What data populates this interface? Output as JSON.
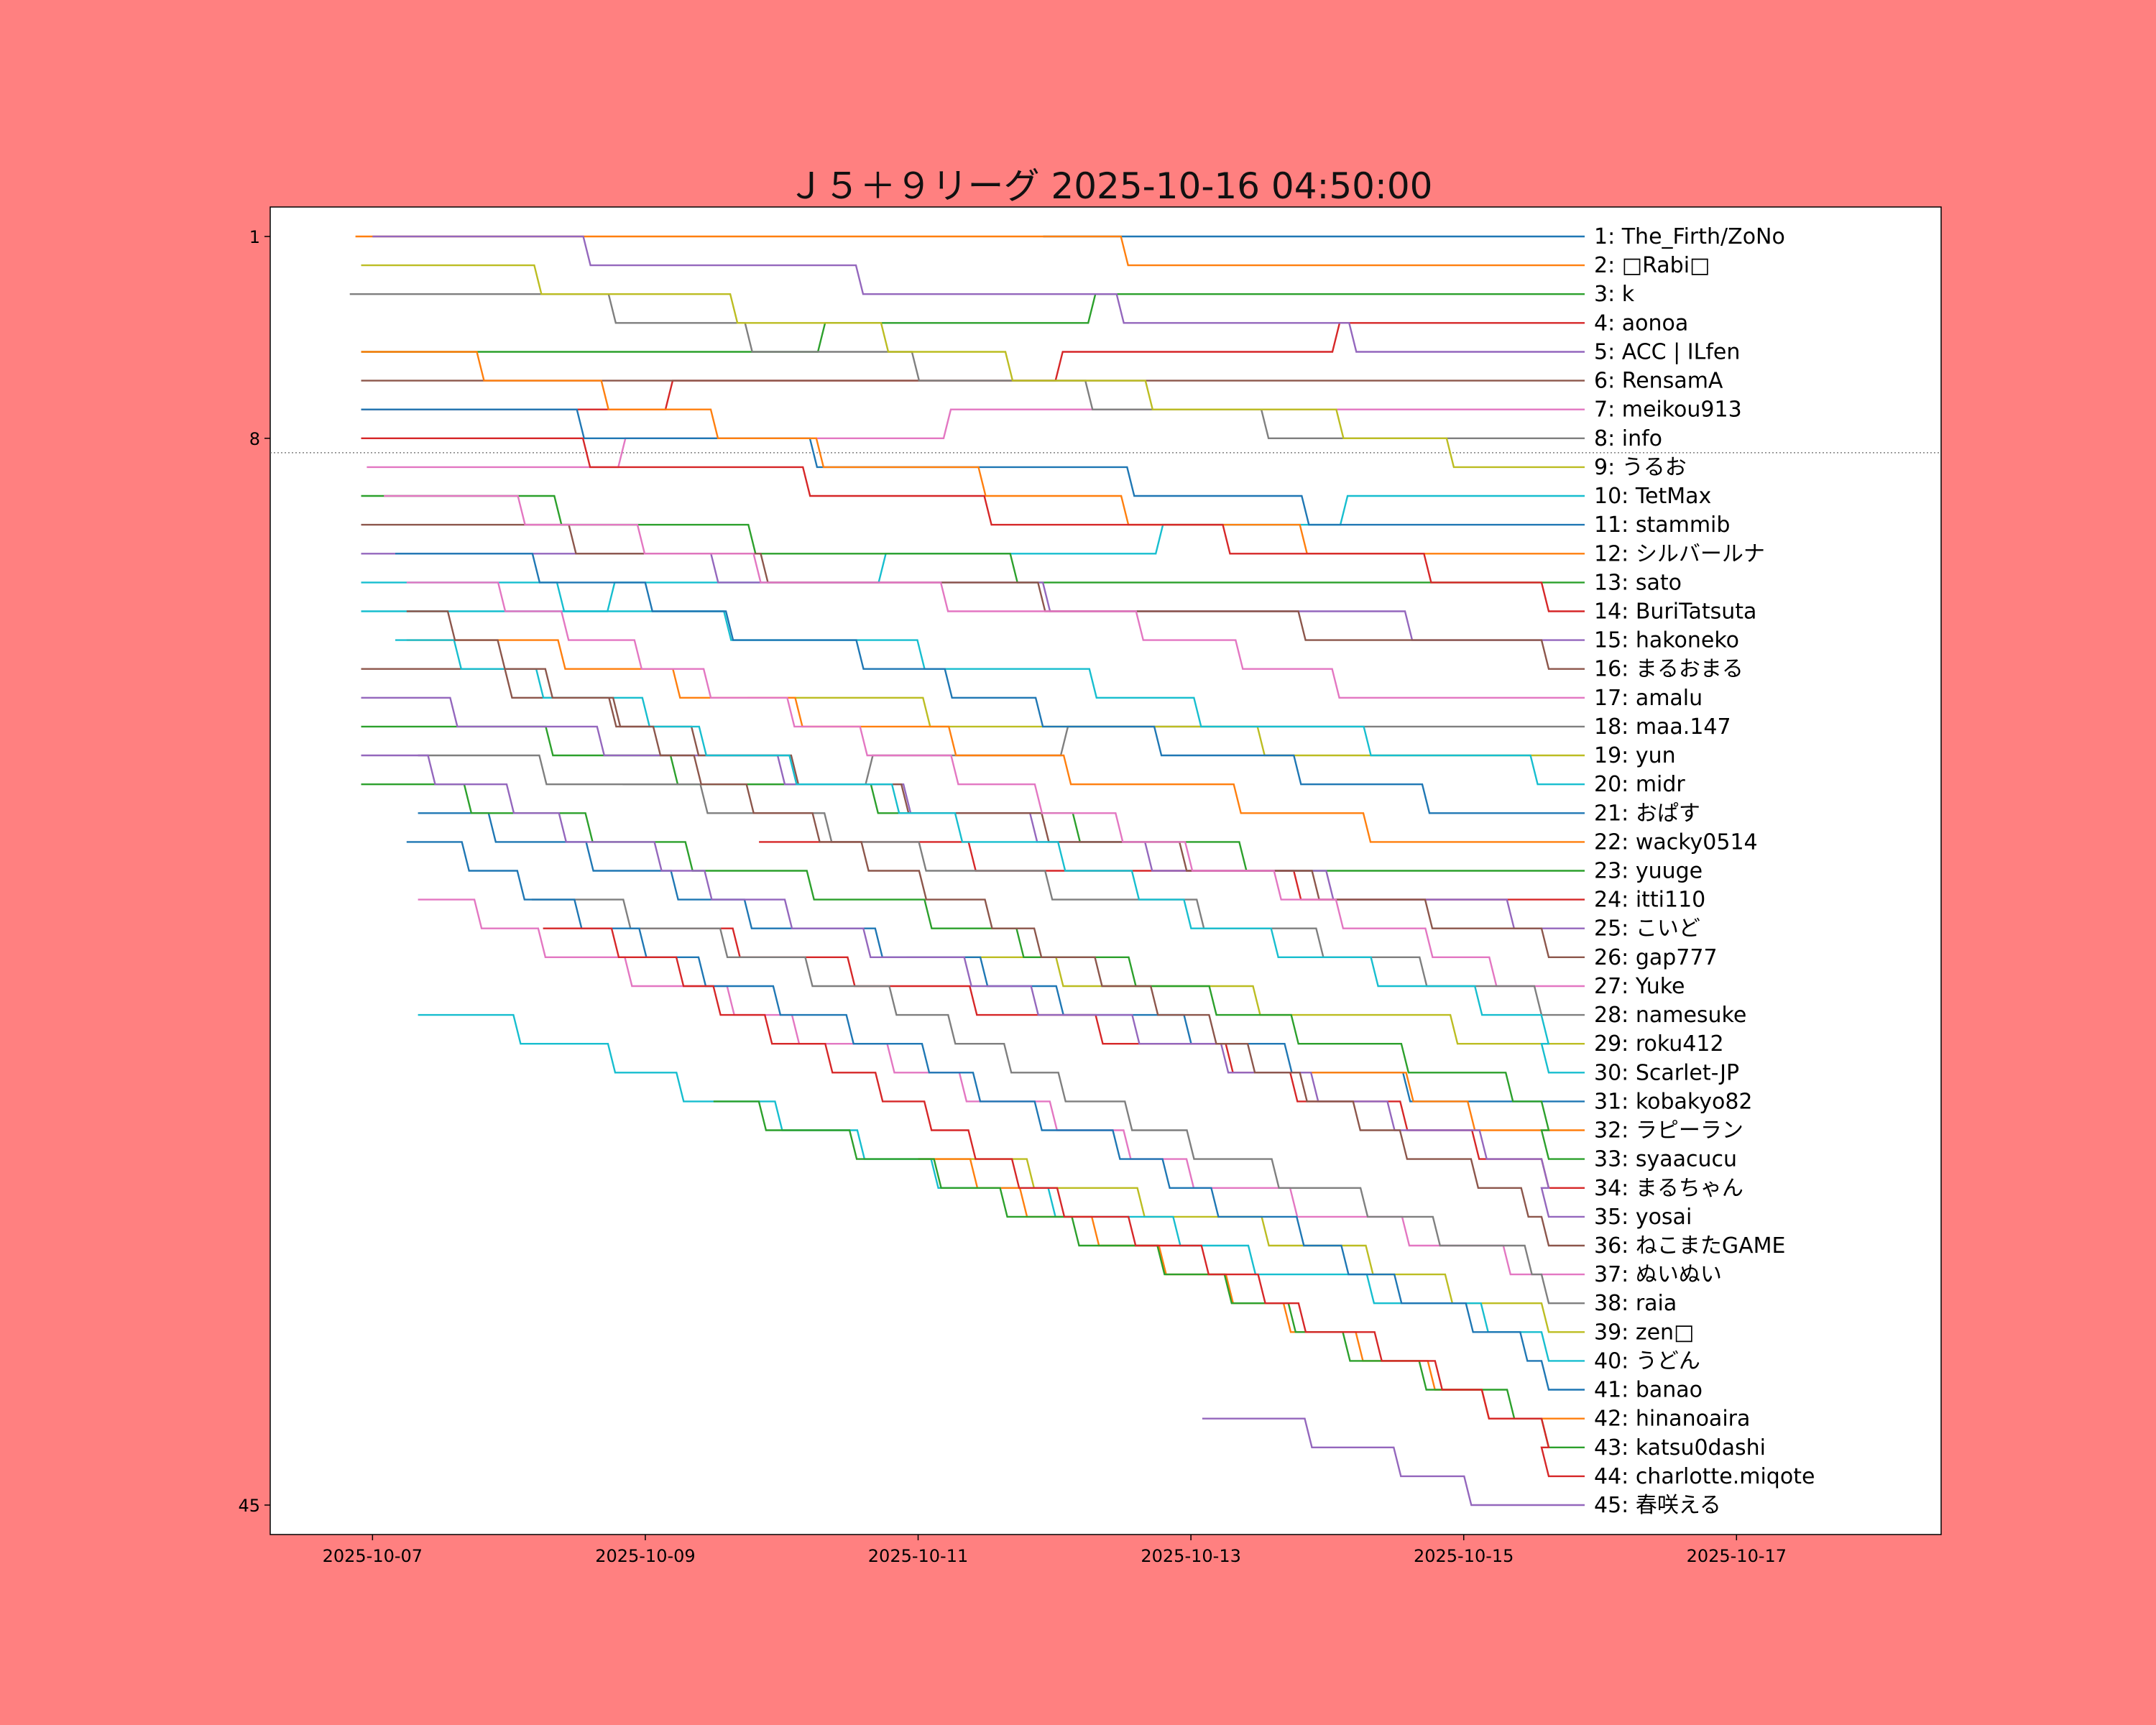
{
  "chart_data": {
    "type": "line",
    "title": "Ｊ５＋９リーグ 2025-10-16 04:50:00",
    "x_ticks": [
      "2025-10-07",
      "2025-10-09",
      "2025-10-11",
      "2025-10-13",
      "2025-10-15",
      "2025-10-17"
    ],
    "x_range": [
      "2025-10-06T06:00",
      "2025-10-18T12:00"
    ],
    "y_ticks": [
      1,
      8,
      45
    ],
    "y_range": [
      0,
      46
    ],
    "y_inverted": true,
    "threshold_line": 8.5,
    "grid": false,
    "legend": "labels at right end of each line",
    "colors": [
      "#1f77b4",
      "#ff7f0e",
      "#2ca02c",
      "#d62728",
      "#9467bd",
      "#8c564b",
      "#e377c2",
      "#7f7f7f",
      "#bcbd22",
      "#17becf"
    ],
    "series": [
      {
        "label": "1: The_Firth/ZoNo",
        "start": "2025-10-11T22:00",
        "y0": 1
      },
      {
        "label": "2: □Rabi□",
        "start": "2025-10-06T21:00",
        "y0": 1
      },
      {
        "label": "3: k",
        "start": "2025-10-06T22:00",
        "y0": 5
      },
      {
        "label": "4: aonoa",
        "start": "2025-10-06T22:00",
        "y0": 7
      },
      {
        "label": "5: ACC | ILfen",
        "start": "2025-10-07T00:00",
        "y0": 1
      },
      {
        "label": "6: RensamA",
        "start": "2025-10-06T22:00",
        "y0": 6
      },
      {
        "label": "7: meikou913",
        "start": "2025-10-06T23:00",
        "y0": 9
      },
      {
        "label": "8: info",
        "start": "2025-10-06T20:00",
        "y0": 3
      },
      {
        "label": "9: うるお",
        "start": "2025-10-06T22:00",
        "y0": 2
      },
      {
        "label": "10: TetMax",
        "start": "2025-10-06T22:00",
        "y0": 14
      },
      {
        "label": "11: stammib",
        "start": "2025-10-06T22:00",
        "y0": 7
      },
      {
        "label": "12: シルバールナ",
        "start": "2025-10-06T22:00",
        "y0": 5
      },
      {
        "label": "13: sato",
        "start": "2025-10-06T22:00",
        "y0": 10
      },
      {
        "label": "14: BuriTatsuta",
        "start": "2025-10-06T22:00",
        "y0": 8
      },
      {
        "label": "15: hakoneko",
        "start": "2025-10-06T22:00",
        "y0": 12
      },
      {
        "label": "16: まるおまる",
        "start": "2025-10-06T22:00",
        "y0": 11
      },
      {
        "label": "17: amalu",
        "start": "2025-10-07T02:00",
        "y0": 10
      },
      {
        "label": "18: maa.147",
        "start": "2025-10-08T20:00",
        "y0": 20
      },
      {
        "label": "19: yun",
        "start": "2025-10-09T18:00",
        "y0": 17
      },
      {
        "label": "20: midr",
        "start": "2025-10-06T22:00",
        "y0": 13
      },
      {
        "label": "21: おぱす",
        "start": "2025-10-07T04:00",
        "y0": 12
      },
      {
        "label": "22: wacky0514",
        "start": "2025-10-07T06:00",
        "y0": 15
      },
      {
        "label": "23: yuuge",
        "start": "2025-10-06T22:00",
        "y0": 18
      },
      {
        "label": "24: itti110",
        "start": "2025-10-09T20:00",
        "y0": 22
      },
      {
        "label": "25: こいど",
        "start": "2025-10-06T22:00",
        "y0": 17
      },
      {
        "label": "26: gap777",
        "start": "2025-10-06T22:00",
        "y0": 16
      },
      {
        "label": "27: Yuke",
        "start": "2025-10-07T06:00",
        "y0": 13
      },
      {
        "label": "28: namesuke",
        "start": "2025-10-07T08:00",
        "y0": 19
      },
      {
        "label": "29: roku412",
        "start": "2025-10-10T22:00",
        "y0": 26
      },
      {
        "label": "30: Scarlet-JP",
        "start": "2025-10-07T04:00",
        "y0": 15
      },
      {
        "label": "31: kobakyo82",
        "start": "2025-10-07T08:00",
        "y0": 21
      },
      {
        "label": "32: ラピーラン",
        "start": "2025-10-13T20:00",
        "y0": 30
      },
      {
        "label": "33: syaacucu",
        "start": "2025-10-06T22:00",
        "y0": 20
      },
      {
        "label": "34: まるちゃん",
        "start": "2025-10-08T22:00",
        "y0": 25
      },
      {
        "label": "35: yosai",
        "start": "2025-10-06T22:00",
        "y0": 19
      },
      {
        "label": "36: ねこまたGAME",
        "start": "2025-10-07T06:00",
        "y0": 14
      },
      {
        "label": "37: ぬいぬい",
        "start": "2025-10-07T08:00",
        "y0": 24
      },
      {
        "label": "38: raia",
        "start": "2025-10-08T04:00",
        "y0": 24
      },
      {
        "label": "39: zen□",
        "start": "2025-10-11T00:00",
        "y0": 33
      },
      {
        "label": "40: うどん",
        "start": "2025-10-07T08:00",
        "y0": 28
      },
      {
        "label": "41: banao",
        "start": "2025-10-07T06:00",
        "y0": 22
      },
      {
        "label": "42: hinanoaira",
        "start": "2025-10-11T00:00",
        "y0": 33
      },
      {
        "label": "43: katsu0dashi",
        "start": "2025-10-09T12:00",
        "y0": 31
      },
      {
        "label": "44: charlotte.miqote",
        "start": "2025-10-08T06:00",
        "y0": 25
      },
      {
        "label": "45: 春咲える",
        "start": "2025-10-13T02:00",
        "y0": 42
      }
    ]
  }
}
